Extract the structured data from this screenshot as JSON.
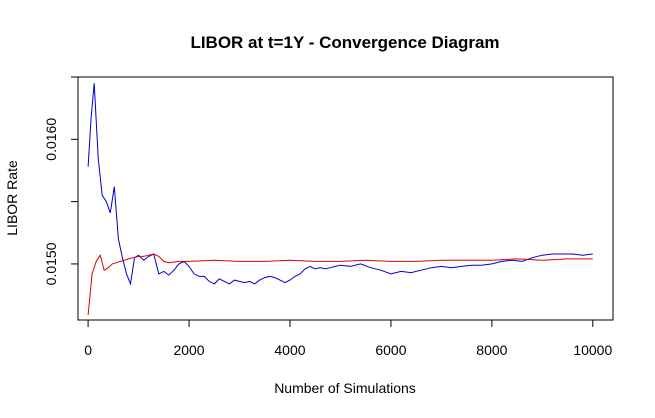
{
  "chart_data": {
    "type": "line",
    "title": "LIBOR at t=1Y - Convergence Diagram",
    "xlabel": "Number of Simulations",
    "ylabel": "LIBOR Rate",
    "xlim": [
      -200,
      10400
    ],
    "ylim": [
      0.01455,
      0.0165
    ],
    "x_ticks": [
      0,
      2000,
      4000,
      6000,
      8000,
      10000
    ],
    "x_tick_labels": [
      "0",
      "2000",
      "4000",
      "6000",
      "8000",
      "10000"
    ],
    "y_ticks": [
      0.015,
      0.016
    ],
    "y_tick_labels": [
      "0.0150",
      "0.0160"
    ],
    "grid": false,
    "legend": "none",
    "series": [
      {
        "color": "#0000cc",
        "x": [
          0,
          60,
          120,
          200,
          280,
          360,
          440,
          520,
          600,
          680,
          760,
          840,
          920,
          1000,
          1100,
          1200,
          1300,
          1400,
          1500,
          1600,
          1700,
          1800,
          1900,
          2000,
          2100,
          2200,
          2300,
          2400,
          2500,
          2600,
          2700,
          2800,
          2900,
          3000,
          3100,
          3200,
          3300,
          3400,
          3500,
          3600,
          3700,
          3800,
          3900,
          4000,
          4100,
          4200,
          4300,
          4400,
          4500,
          4600,
          4700,
          4800,
          4900,
          5000,
          5200,
          5400,
          5600,
          5800,
          6000,
          6200,
          6400,
          6600,
          6800,
          7000,
          7200,
          7400,
          7600,
          7800,
          8000,
          8200,
          8400,
          8600,
          8800,
          9000,
          9200,
          9400,
          9600,
          9800,
          10000
        ],
        "values": [
          0.01578,
          0.01617,
          0.01645,
          0.01585,
          0.01555,
          0.0155,
          0.01541,
          0.01562,
          0.0152,
          0.01505,
          0.01492,
          0.01484,
          0.01505,
          0.01507,
          0.01503,
          0.01506,
          0.01508,
          0.01492,
          0.01494,
          0.01491,
          0.01495,
          0.015,
          0.01502,
          0.01498,
          0.01492,
          0.0149,
          0.0149,
          0.01486,
          0.01484,
          0.01488,
          0.01486,
          0.01484,
          0.01487,
          0.01486,
          0.01485,
          0.01486,
          0.01484,
          0.01487,
          0.01489,
          0.0149,
          0.01489,
          0.01487,
          0.01485,
          0.01487,
          0.0149,
          0.01492,
          0.01496,
          0.01498,
          0.01496,
          0.01497,
          0.01496,
          0.01497,
          0.01498,
          0.01499,
          0.01498,
          0.015,
          0.01497,
          0.01495,
          0.01492,
          0.01494,
          0.01493,
          0.01495,
          0.01497,
          0.01498,
          0.01497,
          0.01498,
          0.01499,
          0.01499,
          0.015,
          0.01502,
          0.01503,
          0.01502,
          0.01505,
          0.01507,
          0.01508,
          0.01508,
          0.01508,
          0.01507,
          0.01508
        ]
      },
      {
        "color": "#dd0000",
        "x": [
          0,
          80,
          160,
          240,
          320,
          400,
          480,
          560,
          640,
          720,
          800,
          900,
          1000,
          1100,
          1200,
          1300,
          1400,
          1500,
          1600,
          1800,
          2000,
          2500,
          3000,
          3500,
          4000,
          4500,
          5000,
          5500,
          6000,
          6500,
          7000,
          7500,
          8000,
          8500,
          9000,
          9500,
          10000
        ],
        "values": [
          0.01459,
          0.01492,
          0.01502,
          0.01507,
          0.01495,
          0.01497,
          0.015,
          0.01501,
          0.01502,
          0.01503,
          0.01504,
          0.01505,
          0.01506,
          0.01506,
          0.01507,
          0.01508,
          0.01506,
          0.01502,
          0.01501,
          0.01502,
          0.01502,
          0.01503,
          0.01502,
          0.01502,
          0.01503,
          0.01502,
          0.01502,
          0.01503,
          0.01502,
          0.01502,
          0.01503,
          0.01503,
          0.01503,
          0.01504,
          0.01503,
          0.01504,
          0.01504
        ]
      }
    ]
  }
}
